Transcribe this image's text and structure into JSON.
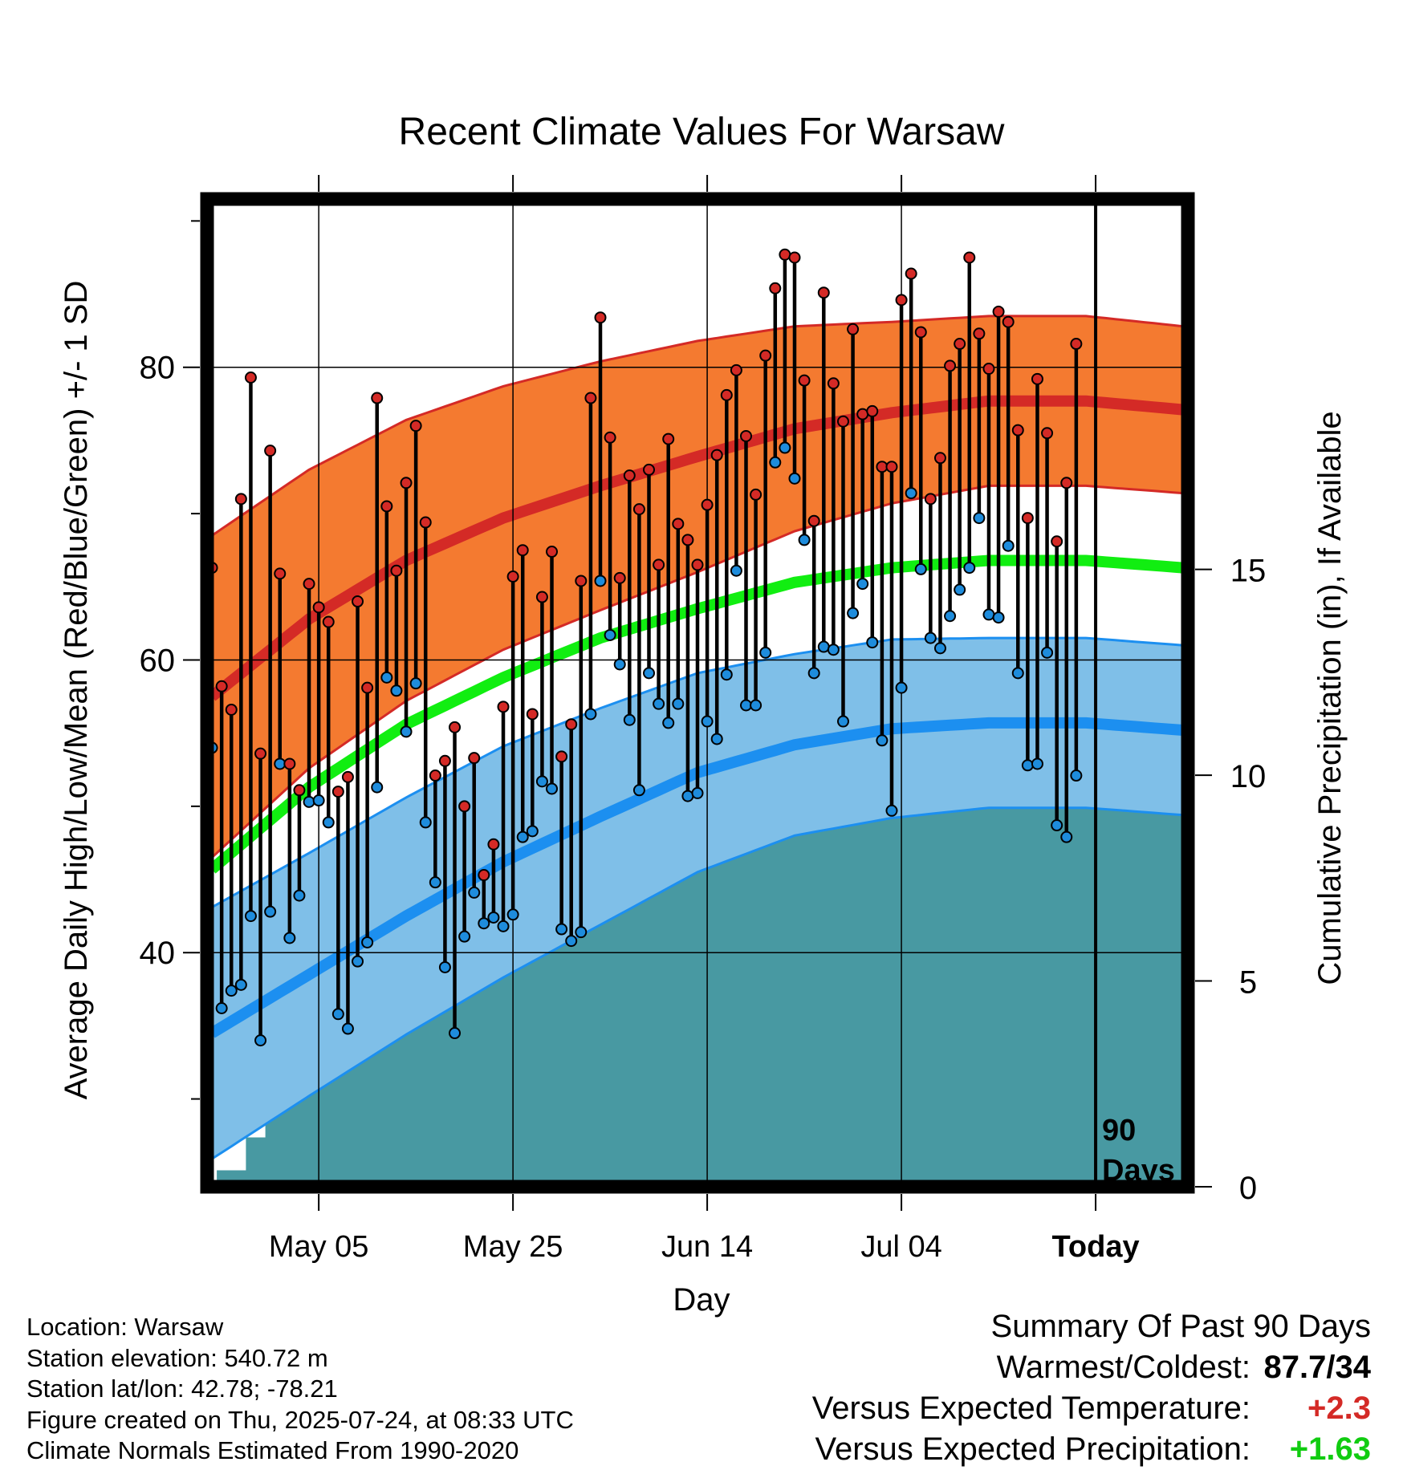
{
  "chart_data": {
    "type": "line",
    "title": "Recent Climate Values For Warsaw",
    "xlabel": "Day",
    "ylabel": "Average Daily High/Low/Mean (Red/Blue/Green) +/- 1 SD",
    "y2label": "Cumulative Precipitation (in), If Available",
    "x_tick_labels": [
      "May 05",
      "May 25",
      "Jun 14",
      "Jul 04",
      "Today"
    ],
    "x_tick_days": [
      11,
      31,
      51,
      71,
      91
    ],
    "xlim": [
      -0.5,
      100.5
    ],
    "ylim": [
      24,
      91.5
    ],
    "y_ticks": [
      40,
      60,
      80
    ],
    "y2lim": [
      0,
      24
    ],
    "y2_ticks": [
      0,
      5,
      10,
      15
    ],
    "grid": true,
    "today_marker_label": [
      "90",
      "Days"
    ],
    "colors": {
      "high": "#d42a26",
      "high_band": "#f47a30",
      "low": "#1c8ff0",
      "low_band": "#7fbfe8",
      "mean": "#11ee11",
      "precip": "#4899a2",
      "dot_high": "#d42a26",
      "dot_low": "#1e8cdc"
    },
    "normals": {
      "days": [
        0,
        10,
        20,
        30,
        40,
        50,
        60,
        70,
        80,
        90,
        100
      ],
      "high_mean": [
        57.5,
        62.8,
        66.8,
        69.7,
        71.9,
        73.9,
        75.8,
        76.9,
        77.7,
        77.7,
        77.1
      ],
      "high_sd": [
        11.0,
        10.2,
        9.6,
        9.0,
        8.5,
        7.9,
        7.0,
        6.2,
        5.8,
        5.8,
        5.7
      ],
      "mean_line": [
        45.7,
        51.3,
        55.6,
        58.8,
        61.5,
        63.5,
        65.3,
        66.3,
        66.8,
        66.8,
        66.3
      ],
      "low_mean": [
        34.5,
        38.5,
        42.5,
        46.2,
        49.3,
        52.3,
        54.2,
        55.3,
        55.7,
        55.7,
        55.2
      ],
      "low_sd": [
        8.6,
        8.3,
        8.1,
        7.9,
        7.4,
        6.8,
        6.2,
        6.1,
        5.8,
        5.8,
        5.8
      ]
    },
    "series": [
      {
        "name": "Daily High",
        "days": [
          0,
          1,
          2,
          3,
          4,
          5,
          6,
          7,
          8,
          9,
          10,
          11,
          12,
          13,
          14,
          15,
          16,
          17,
          18,
          19,
          20,
          21,
          22,
          23,
          24,
          25,
          26,
          27,
          28,
          29,
          30,
          31,
          32,
          33,
          34,
          35,
          36,
          37,
          38,
          39,
          40,
          41,
          42,
          43,
          44,
          45,
          46,
          47,
          48,
          49,
          50,
          51,
          52,
          53,
          54,
          55,
          56,
          57,
          58,
          59,
          60,
          61,
          62,
          63,
          64,
          65,
          66,
          67,
          68,
          69,
          70,
          71,
          72,
          73,
          74,
          75,
          76,
          77,
          78,
          79,
          80,
          81,
          82,
          83,
          84,
          85,
          86,
          87,
          88,
          89,
          90
        ],
        "values": [
          66.3,
          58.2,
          56.6,
          71.0,
          79.3,
          53.6,
          74.3,
          65.9,
          52.9,
          51.1,
          65.2,
          63.6,
          62.6,
          51.0,
          52.0,
          64.0,
          58.1,
          77.9,
          70.5,
          66.1,
          72.1,
          76.0,
          69.4,
          52.1,
          53.1,
          55.4,
          50.0,
          53.3,
          45.3,
          47.4,
          56.8,
          65.7,
          67.5,
          56.3,
          64.3,
          67.4,
          53.4,
          55.6,
          65.4,
          77.9,
          83.4,
          75.2,
          65.6,
          72.6,
          70.3,
          73.0,
          66.5,
          75.1,
          69.3,
          68.2,
          66.5,
          70.6,
          74.0,
          78.1,
          79.8,
          75.3,
          71.3,
          80.8,
          85.4,
          87.7,
          87.5,
          79.1,
          69.5,
          85.1,
          78.9,
          76.3,
          82.6,
          76.8,
          77.0,
          73.2,
          73.2,
          84.6,
          86.4,
          82.4,
          71.0,
          73.8,
          80.1,
          81.6,
          87.5,
          82.3,
          79.9,
          83.8,
          83.1,
          75.7,
          69.7,
          79.2,
          75.5,
          68.1,
          72.1,
          81.6,
          0
        ]
      },
      {
        "name": "Daily Low",
        "days": [
          0,
          1,
          2,
          3,
          4,
          5,
          6,
          7,
          8,
          9,
          10,
          11,
          12,
          13,
          14,
          15,
          16,
          17,
          18,
          19,
          20,
          21,
          22,
          23,
          24,
          25,
          26,
          27,
          28,
          29,
          30,
          31,
          32,
          33,
          34,
          35,
          36,
          37,
          38,
          39,
          40,
          41,
          42,
          43,
          44,
          45,
          46,
          47,
          48,
          49,
          50,
          51,
          52,
          53,
          54,
          55,
          56,
          57,
          58,
          59,
          60,
          61,
          62,
          63,
          64,
          65,
          66,
          67,
          68,
          69,
          70,
          71,
          72,
          73,
          74,
          75,
          76,
          77,
          78,
          79,
          80,
          81,
          82,
          83,
          84,
          85,
          86,
          87,
          88,
          89,
          90
        ],
        "values": [
          54.0,
          36.2,
          37.4,
          37.8,
          42.5,
          34.0,
          42.8,
          52.9,
          41.0,
          43.9,
          50.3,
          50.4,
          48.9,
          35.8,
          34.8,
          39.4,
          40.7,
          51.3,
          58.8,
          57.9,
          55.1,
          58.4,
          48.9,
          44.8,
          39.0,
          34.5,
          41.1,
          44.1,
          42.0,
          42.4,
          41.8,
          42.6,
          47.9,
          48.3,
          51.7,
          51.2,
          41.6,
          40.8,
          41.4,
          56.3,
          65.4,
          61.7,
          59.7,
          55.9,
          51.1,
          59.1,
          57.0,
          55.7,
          57.0,
          50.7,
          50.9,
          55.8,
          54.6,
          59.0,
          66.1,
          56.9,
          56.9,
          60.5,
          73.5,
          74.5,
          72.4,
          68.2,
          59.1,
          60.9,
          60.7,
          55.8,
          63.2,
          65.2,
          61.2,
          54.5,
          49.7,
          58.1,
          71.4,
          66.2,
          61.5,
          60.8,
          63.0,
          64.8,
          66.3,
          69.7,
          63.1,
          62.9,
          67.8,
          59.1,
          52.8,
          52.9,
          60.5,
          48.7,
          47.9,
          52.1,
          0
        ]
      }
    ],
    "precip": {
      "days": [
        0,
        1,
        2,
        3,
        4,
        5,
        6,
        7,
        8,
        9,
        10,
        11,
        12,
        13,
        14,
        15,
        16,
        17,
        18,
        19,
        20,
        21,
        22,
        23,
        24,
        25,
        26,
        27,
        28,
        29,
        30,
        31,
        32,
        33,
        34,
        35,
        36,
        37,
        38,
        39,
        40,
        41,
        42,
        43,
        44,
        45,
        46,
        47,
        48,
        49,
        50,
        51,
        52,
        53,
        54,
        55,
        56,
        57,
        58,
        59,
        60,
        61,
        62,
        63,
        64,
        65,
        66,
        67,
        68,
        69,
        70,
        71,
        72,
        73,
        74,
        75,
        76,
        77,
        78,
        79,
        80,
        81,
        82,
        83,
        84,
        85,
        86,
        87,
        88,
        89,
        90,
        91,
        92,
        93,
        94,
        95,
        96,
        97,
        98,
        99,
        100
      ],
      "cumulative_in": [
        0.1,
        0.4,
        0.4,
        0.4,
        1.2,
        1.2,
        1.9,
        2.2,
        2.6,
        2.7,
        4.2,
        4.6,
        4.6,
        4.6,
        4.6,
        4.6,
        4.6,
        4.6,
        4.6,
        4.6,
        5.0,
        5.5,
        5.7,
        5.7,
        5.7,
        5.7,
        6.2,
        6.5,
        6.8,
        7.2,
        7.2,
        7.2,
        7.2,
        7.2,
        7.5,
        7.5,
        7.6,
        7.6,
        7.6,
        7.6,
        7.6,
        7.6,
        8.6,
        8.6,
        8.9,
        9.6,
        9.6,
        9.6,
        9.7,
        9.7,
        9.9,
        9.9,
        9.9,
        9.9,
        9.9,
        10.0,
        10.1,
        10.1,
        10.1,
        10.1,
        10.1,
        10.4,
        10.4,
        11.5,
        11.5,
        11.5,
        11.7,
        12.3,
        12.4,
        12.4,
        12.4,
        12.4,
        12.4,
        12.5,
        12.5,
        12.5,
        12.5,
        12.6,
        12.7,
        12.7,
        12.8,
        12.8,
        12.9,
        12.9,
        12.9,
        12.9,
        13.0,
        13.0,
        13.0,
        13.0,
        13.0,
        13.0,
        13.0,
        13.0,
        13.0,
        13.0,
        13.0,
        13.0,
        13.0,
        13.0,
        13.0
      ]
    }
  },
  "info": {
    "location": "Location: Warsaw",
    "elevation": "Station elevation: 540.72 m",
    "latlon": "Station lat/lon: 42.78; -78.21",
    "created": "Figure created on Thu, 2025-07-24, at 08:33 UTC",
    "normals_note": "Climate Normals Estimated From 1990-2020"
  },
  "summary": {
    "heading": "Summary Of Past 90 Days",
    "warmest_label": "Warmest/Coldest:",
    "warmest_value": "87.7/34",
    "temp_label": "Versus Expected Temperature:",
    "temp_value": "+2.3",
    "temp_color": "#d42a26",
    "precip_label": "Versus Expected Precipitation:",
    "precip_value": "+1.63",
    "precip_color": "#11cc11"
  }
}
